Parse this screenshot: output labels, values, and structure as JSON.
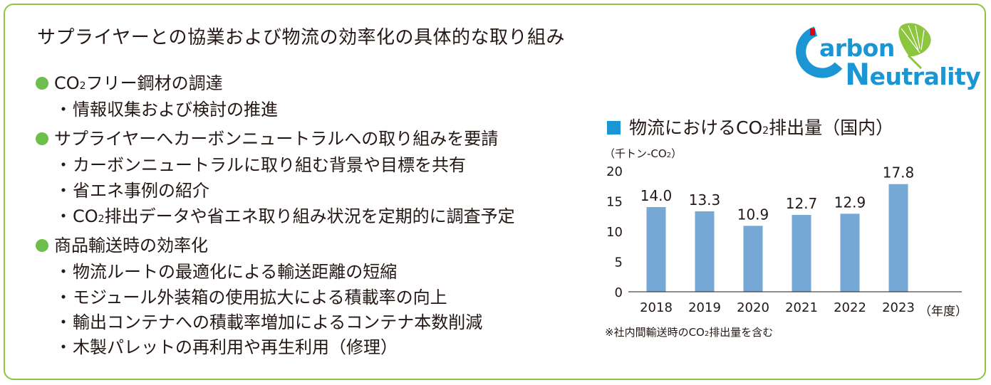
{
  "title": "サプライヤーとの協業および物流の効率化の具体的な取り組み",
  "sections": [
    {
      "heading": "CO",
      "heading_sub": "2",
      "heading_rest": "フリー鋼材の調達",
      "items": [
        "情報収集および検討の推進"
      ]
    },
    {
      "heading": "サプライヤーへカーボンニュートラルへの取り組みを要請",
      "items": [
        "カーボンニュートラルに取り組む背景や目標を共有",
        "省エネ事例の紹介",
        "排出データや省エネ取り組み状況を定期的に調査予定"
      ]
    },
    {
      "heading": "商品輸送時の効率化",
      "items": [
        "物流ルートの最適化による輸送距離の短縮",
        "モジュール外装箱の使用拡大による積載率の向上",
        "輸出コンテナへの積載率増加によるコンテナ本数削減",
        "木製パレットの再利用や再生利用（修理）"
      ]
    }
  ],
  "bullet_mark": "・",
  "co": "CO",
  "two": "2",
  "logo": {
    "line1": "arbon",
    "line2": "eutrality",
    "color": "#1b96d4",
    "leaf_color": "#8cc63f"
  },
  "chart_data": {
    "type": "bar",
    "title_pre": "物流における",
    "title_post": "排出量（国内）",
    "unit_pre": "（千トン-",
    "unit_post": "）",
    "categories": [
      "2018",
      "2019",
      "2020",
      "2021",
      "2022",
      "2023"
    ],
    "values": [
      14.0,
      13.3,
      10.9,
      12.7,
      12.9,
      17.8
    ],
    "value_labels": [
      "14.0",
      "13.3",
      "10.9",
      "12.7",
      "12.9",
      "17.8"
    ],
    "y_ticks": [
      "0",
      "5",
      "10",
      "15",
      "20"
    ],
    "ylim": [
      0,
      20
    ],
    "x_unit": "（年度）",
    "note_pre": "※社内間輸送時の",
    "note_post": "排出量を含む",
    "bar_color": "#76a8d6",
    "heading_marker_color": "#1b96d4",
    "grid": false
  },
  "colors": {
    "border": "#8cc63f",
    "bullet": "#6cbf4a"
  }
}
